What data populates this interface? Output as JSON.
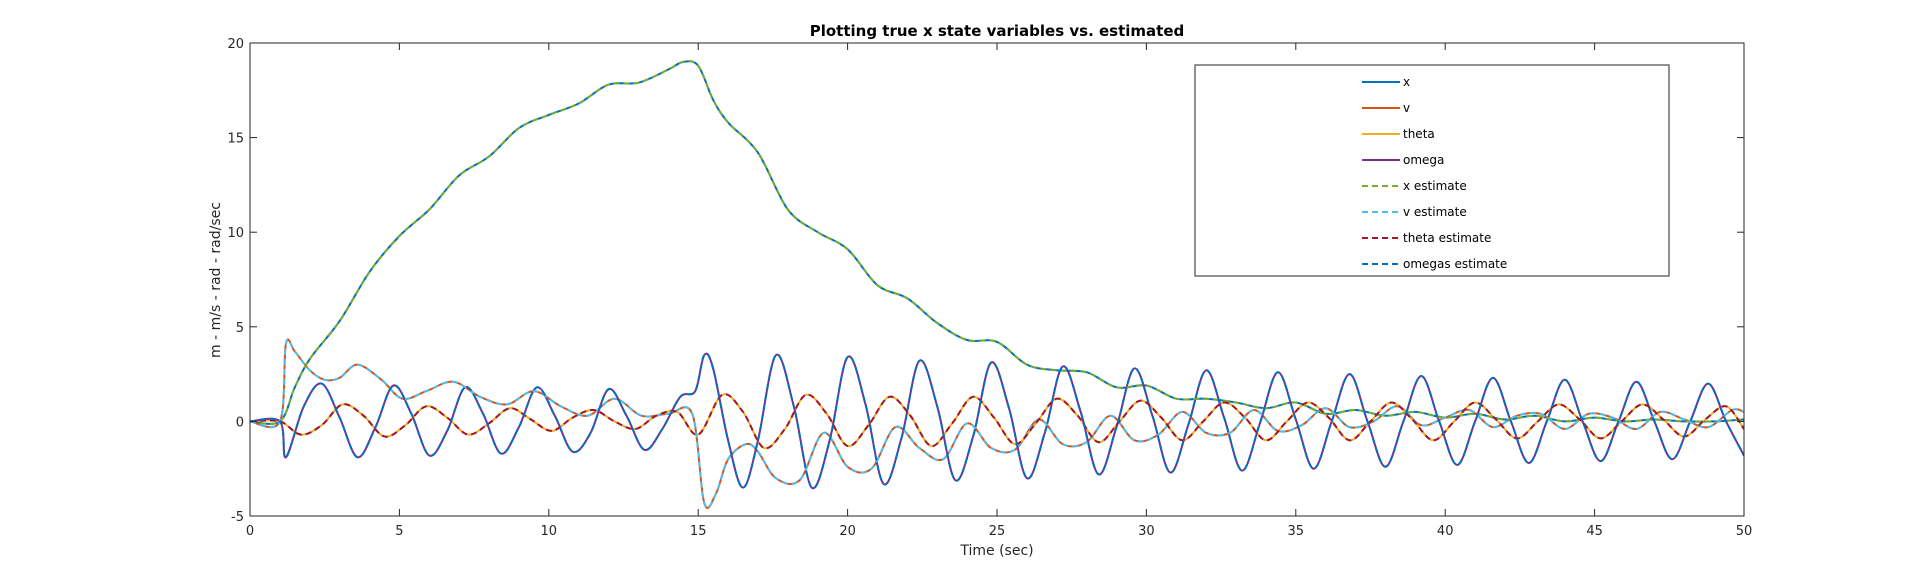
{
  "chart_data": {
    "type": "line",
    "title": "Plotting true x state variables vs. estimated",
    "xlabel": "Time (sec)",
    "ylabel": "m - m/s - rad - rad/sec",
    "xlim": [
      0,
      50
    ],
    "ylim": [
      -5,
      20
    ],
    "xticks": [
      0,
      5,
      10,
      15,
      20,
      25,
      30,
      35,
      40,
      45,
      50
    ],
    "yticks": [
      -5,
      0,
      5,
      10,
      15,
      20
    ],
    "grid": false,
    "legend_position": "top-right",
    "series": [
      {
        "name": "x",
        "color": "#0072BD",
        "style": "solid",
        "x": [
          0,
          1,
          1.5,
          2,
          3,
          4,
          5,
          6,
          7,
          8,
          9,
          10,
          11,
          12,
          13,
          14,
          14.5,
          15,
          15.5,
          16,
          17,
          18,
          19,
          20,
          21,
          22,
          23,
          24,
          25,
          26,
          27,
          28,
          29,
          30,
          31,
          32,
          33,
          34,
          35,
          36,
          37,
          38,
          39,
          40,
          41,
          42,
          43,
          44,
          45,
          46,
          47,
          48,
          49,
          50
        ],
        "y": [
          0,
          0,
          1.8,
          3.3,
          5.3,
          7.9,
          9.8,
          11.2,
          13.0,
          14.0,
          15.5,
          16.2,
          16.8,
          17.8,
          17.9,
          18.6,
          19.0,
          18.8,
          17.0,
          15.8,
          14.2,
          11.2,
          10.0,
          9.1,
          7.2,
          6.5,
          5.2,
          4.3,
          4.2,
          3.0,
          2.7,
          2.6,
          1.8,
          1.9,
          1.2,
          1.2,
          1.0,
          0.7,
          1.0,
          0.4,
          0.6,
          0.3,
          0.5,
          0.2,
          0.4,
          0.1,
          0.3,
          0.0,
          0.2,
          0.0,
          0.1,
          0.0,
          0.0,
          0.1
        ]
      },
      {
        "name": "v",
        "color": "#D95319",
        "style": "solid",
        "x": [
          0,
          1,
          1.2,
          1.5,
          2.0,
          2.5,
          3.0,
          3.6,
          4.4,
          5.1,
          5.9,
          6.8,
          7.7,
          8.6,
          9.5,
          10.4,
          11.3,
          12.2,
          13.1,
          14.0,
          14.8,
          15.2,
          15.6,
          16.0,
          16.6,
          17.0,
          17.6,
          18.4,
          19.2,
          20.0,
          20.8,
          21.6,
          22.4,
          23.2,
          24.0,
          24.8,
          25.6,
          26.4,
          27.2,
          28.0,
          28.8,
          29.6,
          30.4,
          31.2,
          32.0,
          32.8,
          33.6,
          34.4,
          35.2,
          36.0,
          36.8,
          37.6,
          38.4,
          39.2,
          40.0,
          40.8,
          41.6,
          42.4,
          43.2,
          44.0,
          44.8,
          45.6,
          46.4,
          47.2,
          48.0,
          48.8,
          49.6,
          50
        ],
        "y": [
          0,
          0,
          4.1,
          3.7,
          2.7,
          2.2,
          2.3,
          3.0,
          2.2,
          1.2,
          1.6,
          2.1,
          1.3,
          0.9,
          1.6,
          0.8,
          0.3,
          1.2,
          0.3,
          0.4,
          0.4,
          -4.3,
          -3.8,
          -2.0,
          -1.2,
          -1.6,
          -3.0,
          -3.1,
          -0.6,
          -2.4,
          -2.5,
          -0.3,
          -1.4,
          -2.0,
          -0.1,
          -1.4,
          -1.5,
          0.1,
          -1.2,
          -1.1,
          0.3,
          -1.0,
          -0.7,
          0.5,
          -0.6,
          -0.6,
          0.6,
          -0.5,
          -0.2,
          0.7,
          -0.3,
          0.0,
          0.8,
          -0.2,
          0.2,
          0.6,
          -0.3,
          0.3,
          0.4,
          -0.4,
          0.4,
          0.2,
          -0.4,
          0.5,
          0.1,
          -0.3,
          0.6,
          0.5
        ]
      },
      {
        "name": "theta",
        "color": "#EDB120",
        "style": "solid",
        "x": [
          0,
          1,
          1.7,
          2.4,
          3.1,
          3.8,
          4.5,
          5.2,
          5.9,
          6.6,
          7.3,
          8.0,
          8.7,
          9.4,
          10.1,
          10.8,
          11.5,
          12.2,
          12.9,
          13.6,
          14.3,
          15.0,
          15.8,
          16.5,
          17.2,
          17.9,
          18.6,
          19.3,
          20.0,
          20.7,
          21.4,
          22.1,
          22.8,
          23.5,
          24.2,
          24.9,
          25.6,
          26.3,
          27.0,
          27.7,
          28.4,
          29.1,
          29.8,
          30.5,
          31.2,
          31.9,
          32.6,
          33.3,
          34.0,
          34.7,
          35.4,
          36.1,
          36.8,
          37.5,
          38.2,
          38.9,
          39.6,
          40.3,
          41.0,
          41.7,
          42.4,
          43.1,
          43.8,
          44.5,
          45.2,
          45.9,
          46.6,
          47.3,
          48.0,
          48.7,
          49.4,
          50
        ],
        "y": [
          0,
          0,
          -0.7,
          -0.2,
          0.9,
          0.3,
          -0.8,
          -0.2,
          0.8,
          0.2,
          -0.7,
          -0.1,
          0.7,
          0.1,
          -0.5,
          0.2,
          0.6,
          0.0,
          -0.4,
          0.3,
          0.5,
          -0.7,
          1.4,
          0.5,
          -1.4,
          -0.4,
          1.4,
          0.4,
          -1.3,
          -0.2,
          1.3,
          0.3,
          -1.3,
          -0.1,
          1.3,
          0.2,
          -1.2,
          -0.1,
          1.2,
          0.3,
          -1.1,
          0.0,
          1.1,
          0.2,
          -1.0,
          0.0,
          1.0,
          0.2,
          -1.0,
          0.0,
          1.0,
          0.2,
          -1.0,
          0.0,
          1.0,
          0.1,
          -1.0,
          0.0,
          1.0,
          0.1,
          -0.9,
          0.0,
          0.9,
          0.1,
          -0.9,
          0.0,
          0.9,
          0.1,
          -0.8,
          0.1,
          0.8,
          -0.4
        ]
      },
      {
        "name": "omega",
        "color": "#7E2F8E",
        "style": "solid",
        "x": [
          0,
          1,
          1.2,
          1.8,
          2.4,
          3.0,
          3.6,
          4.2,
          4.8,
          5.4,
          6.0,
          6.6,
          7.2,
          7.8,
          8.4,
          9.0,
          9.6,
          10.2,
          10.8,
          11.4,
          12.0,
          12.6,
          13.2,
          13.8,
          14.4,
          14.9,
          15.2,
          15.5,
          16.0,
          16.5,
          17.0,
          17.6,
          18.2,
          18.8,
          19.4,
          20.0,
          20.6,
          21.2,
          21.8,
          22.4,
          23.0,
          23.6,
          24.2,
          24.8,
          25.4,
          26.0,
          26.6,
          27.2,
          27.8,
          28.4,
          29.0,
          29.6,
          30.2,
          30.8,
          31.4,
          32.0,
          32.6,
          33.2,
          33.8,
          34.4,
          35.0,
          35.6,
          36.2,
          36.8,
          37.4,
          38.0,
          38.6,
          39.2,
          39.8,
          40.4,
          41.0,
          41.6,
          42.2,
          42.8,
          43.4,
          44.0,
          44.6,
          45.2,
          45.8,
          46.4,
          47.0,
          47.6,
          48.2,
          48.8,
          49.4,
          50
        ],
        "y": [
          0,
          0,
          -1.9,
          0.8,
          2.0,
          0.2,
          -1.9,
          -0.3,
          1.9,
          0.4,
          -1.8,
          -0.5,
          1.8,
          0.4,
          -1.7,
          -0.3,
          1.8,
          0.3,
          -1.6,
          -0.6,
          1.7,
          0.3,
          -1.5,
          -0.4,
          1.3,
          1.6,
          3.5,
          2.8,
          -1.0,
          -3.5,
          -1.0,
          3.5,
          0.8,
          -3.5,
          -1.0,
          3.4,
          0.9,
          -3.3,
          -0.9,
          3.2,
          0.8,
          -3.1,
          -0.8,
          3.1,
          0.7,
          -3.0,
          -0.6,
          2.9,
          0.5,
          -2.8,
          -0.3,
          2.8,
          0.3,
          -2.7,
          -0.2,
          2.7,
          0.2,
          -2.6,
          -0.1,
          2.6,
          0.1,
          -2.5,
          0.0,
          2.5,
          0.0,
          -2.4,
          0.0,
          2.4,
          0.0,
          -2.3,
          0.0,
          2.3,
          0.0,
          -2.2,
          0.0,
          2.2,
          0.0,
          -2.1,
          0.0,
          2.1,
          0.0,
          -2.0,
          0.0,
          2.0,
          0.0,
          -1.8
        ]
      },
      {
        "name": "x estimate",
        "color": "#77AC30",
        "style": "dashed",
        "same_as": "x"
      },
      {
        "name": "v estimate",
        "color": "#4DBEEE",
        "style": "dashed",
        "same_as": "v"
      },
      {
        "name": "theta estimate",
        "color": "#A2142F",
        "style": "dashed",
        "same_as": "theta"
      },
      {
        "name": "omegas estimate",
        "color": "#0072BD",
        "style": "dashed",
        "same_as": "omega"
      }
    ]
  }
}
